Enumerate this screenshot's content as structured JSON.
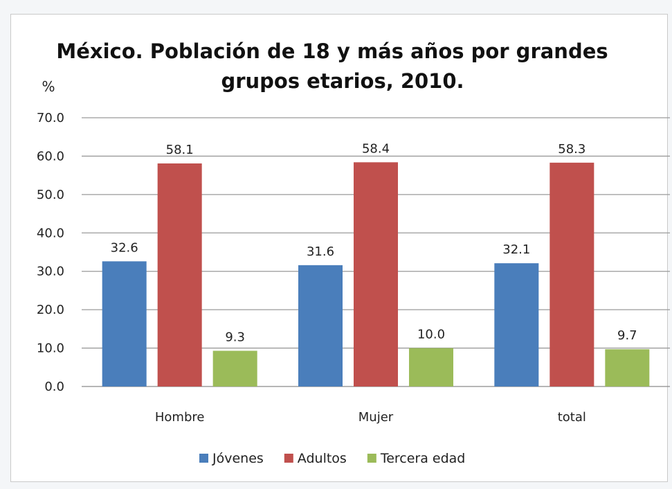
{
  "chart_data": {
    "type": "bar",
    "title_lines": [
      "México. Población de 18 y más años por grandes",
      "grupos etarios, 2010."
    ],
    "ylabel": "%",
    "xlabel": "",
    "categories": [
      "Hombre",
      "Mujer",
      "total"
    ],
    "series": [
      {
        "name": "Jóvenes",
        "color": "#4a7ebb",
        "values": [
          32.6,
          31.6,
          32.1
        ],
        "labels": [
          "32.6",
          "31.6",
          "32.1"
        ]
      },
      {
        "name": "Adultos",
        "color": "#c0504d",
        "values": [
          58.1,
          58.4,
          58.3
        ],
        "labels": [
          "58.1",
          "58.4",
          "58.3"
        ]
      },
      {
        "name": "Tercera edad",
        "color": "#9bbb59",
        "values": [
          9.3,
          10.0,
          9.7
        ],
        "labels": [
          "9.3",
          "10.0",
          "9.7"
        ]
      }
    ],
    "ylim": [
      0,
      70
    ],
    "yticks": [
      "0.0",
      "10.0",
      "20.0",
      "30.0",
      "40.0",
      "50.0",
      "60.0",
      "70.0"
    ],
    "grid": true,
    "legend_position": "bottom"
  }
}
